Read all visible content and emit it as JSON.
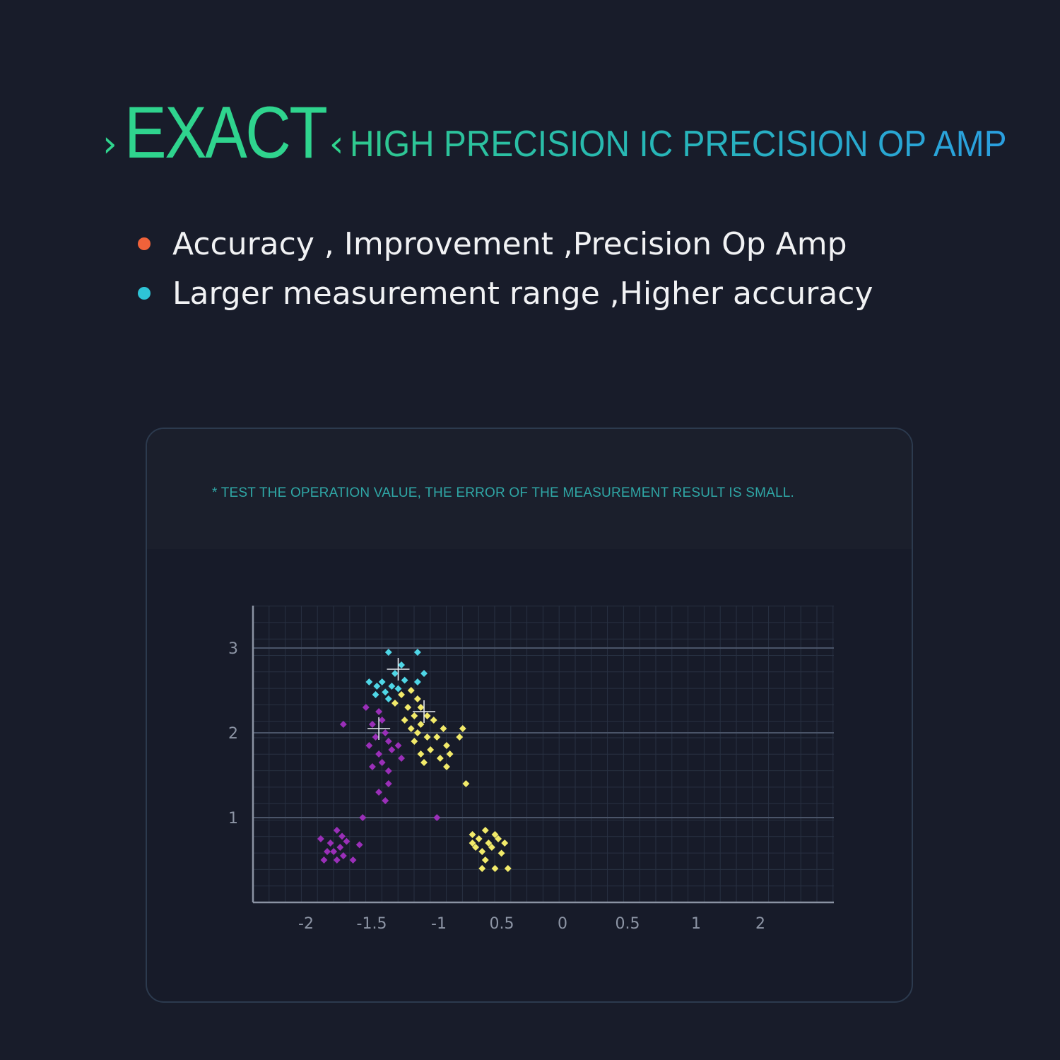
{
  "header": {
    "prefix_glyph": "›",
    "brand_word": "EXACT",
    "suffix_glyph": "‹",
    "subtitle": "HIGH PRECISION IC PRECISION OP AMP"
  },
  "bullets": [
    {
      "text": "Accuracy , Improvement ,Precision Op Amp",
      "color": "#f0623a"
    },
    {
      "text": "Larger measurement range ,Higher accuracy",
      "color": "#2ec4d6"
    }
  ],
  "panel": {
    "note": "* TEST THE OPERATION VALUE, THE ERROR OF THE MEASUREMENT RESULT IS SMALL."
  },
  "colors": {
    "accent_green": "#2fd48e",
    "accent_blue": "#2a9fe0",
    "cyan_points": "#4fd6e6",
    "purple_points": "#9a2fb8",
    "yellow_points": "#f2ea6a"
  },
  "chart_data": {
    "type": "scatter",
    "title": "",
    "xlabel": "",
    "ylabel": "",
    "x_tick_labels": [
      "-2",
      "-1.5",
      "-1",
      "0.5",
      "0",
      "0.5",
      "1",
      "2"
    ],
    "y_tick_labels": [
      "1",
      "2",
      "3"
    ],
    "ylim": [
      0,
      3.5
    ],
    "grid": true,
    "legend": "none",
    "centroid_markers": [
      {
        "x_pos": 2.25,
        "y": 2.75
      },
      {
        "x_pos": 1.95,
        "y": 2.05
      },
      {
        "x_pos": 2.65,
        "y": 2.25
      }
    ],
    "series": [
      {
        "color": "#4fd6e6",
        "points": [
          [
            2.1,
            2.95
          ],
          [
            2.55,
            2.95
          ],
          [
            2.3,
            2.8
          ],
          [
            2.2,
            2.7
          ],
          [
            2.65,
            2.7
          ],
          [
            2.0,
            2.6
          ],
          [
            1.8,
            2.6
          ],
          [
            1.92,
            2.55
          ],
          [
            2.15,
            2.55
          ],
          [
            2.35,
            2.62
          ],
          [
            2.05,
            2.48
          ],
          [
            1.9,
            2.45
          ],
          [
            2.25,
            2.52
          ],
          [
            2.55,
            2.6
          ],
          [
            2.1,
            2.4
          ]
        ]
      },
      {
        "color": "#9a2fb8",
        "points": [
          [
            1.4,
            2.1
          ],
          [
            1.75,
            2.3
          ],
          [
            1.85,
            2.1
          ],
          [
            1.95,
            2.25
          ],
          [
            2.0,
            2.15
          ],
          [
            2.05,
            2.0
          ],
          [
            1.9,
            1.95
          ],
          [
            2.1,
            1.9
          ],
          [
            1.8,
            1.85
          ],
          [
            2.15,
            1.8
          ],
          [
            1.95,
            1.75
          ],
          [
            2.25,
            1.85
          ],
          [
            2.0,
            1.65
          ],
          [
            2.1,
            1.55
          ],
          [
            2.3,
            1.7
          ],
          [
            1.85,
            1.6
          ],
          [
            2.1,
            1.4
          ],
          [
            1.95,
            1.3
          ],
          [
            2.05,
            1.2
          ],
          [
            1.7,
            1.0
          ],
          [
            2.85,
            1.0
          ],
          [
            1.3,
            0.85
          ],
          [
            1.2,
            0.7
          ],
          [
            1.35,
            0.65
          ],
          [
            1.45,
            0.72
          ],
          [
            1.25,
            0.6
          ],
          [
            1.15,
            0.6
          ],
          [
            1.4,
            0.55
          ],
          [
            1.05,
            0.75
          ],
          [
            1.3,
            0.5
          ],
          [
            1.55,
            0.5
          ],
          [
            1.65,
            0.68
          ],
          [
            1.1,
            0.5
          ],
          [
            1.38,
            0.78
          ]
        ]
      },
      {
        "color": "#f2ea6a",
        "points": [
          [
            2.2,
            2.35
          ],
          [
            2.3,
            2.45
          ],
          [
            2.45,
            2.5
          ],
          [
            2.55,
            2.4
          ],
          [
            2.4,
            2.3
          ],
          [
            2.6,
            2.3
          ],
          [
            2.7,
            2.2
          ],
          [
            2.5,
            2.2
          ],
          [
            2.35,
            2.15
          ],
          [
            2.6,
            2.1
          ],
          [
            2.8,
            2.15
          ],
          [
            2.95,
            2.05
          ],
          [
            2.45,
            2.05
          ],
          [
            2.55,
            2.0
          ],
          [
            2.7,
            1.95
          ],
          [
            2.85,
            1.95
          ],
          [
            2.5,
            1.9
          ],
          [
            3.0,
            1.85
          ],
          [
            3.2,
            1.95
          ],
          [
            3.25,
            2.05
          ],
          [
            2.75,
            1.8
          ],
          [
            3.05,
            1.75
          ],
          [
            2.6,
            1.75
          ],
          [
            2.9,
            1.7
          ],
          [
            2.65,
            1.65
          ],
          [
            3.0,
            1.6
          ],
          [
            3.3,
            1.4
          ],
          [
            3.4,
            0.8
          ],
          [
            3.6,
            0.85
          ],
          [
            3.75,
            0.8
          ],
          [
            3.5,
            0.75
          ],
          [
            3.65,
            0.7
          ],
          [
            3.8,
            0.75
          ],
          [
            3.45,
            0.65
          ],
          [
            3.55,
            0.6
          ],
          [
            3.7,
            0.65
          ],
          [
            3.85,
            0.58
          ],
          [
            3.4,
            0.7
          ],
          [
            3.6,
            0.5
          ],
          [
            3.75,
            0.4
          ],
          [
            3.55,
            0.4
          ],
          [
            3.95,
            0.4
          ],
          [
            3.9,
            0.7
          ]
        ]
      }
    ]
  }
}
